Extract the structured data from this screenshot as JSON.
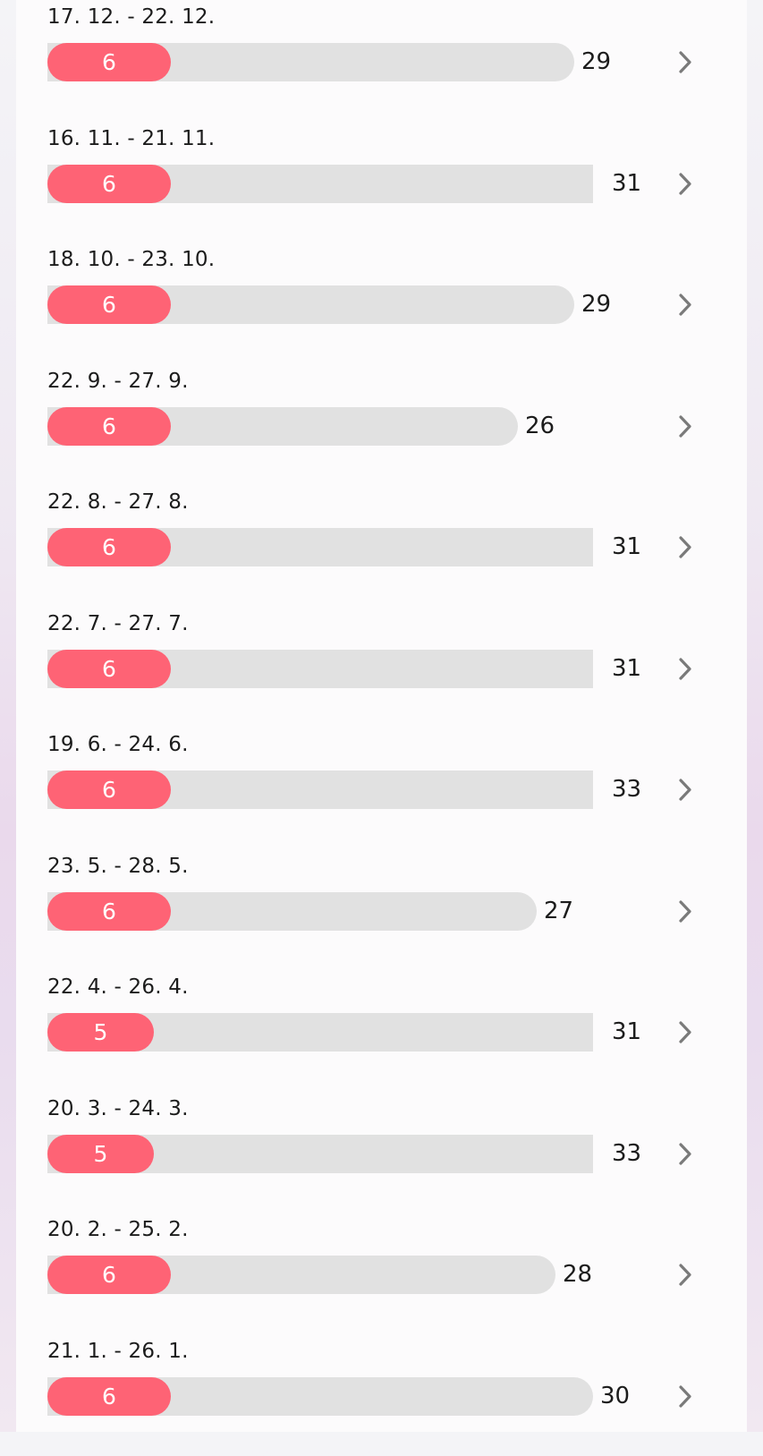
{
  "colors": {
    "period_bar": "#fe6375",
    "cycle_track": "#e1e1e1",
    "chevron": "#7a7a7a"
  },
  "icons": {
    "row_action": "chevron-right-icon"
  },
  "cycles": [
    {
      "date_range": "17. 12. - 22. 12.",
      "period_days": "6",
      "cycle_length": "29"
    },
    {
      "date_range": "16. 11. - 21. 11.",
      "period_days": "6",
      "cycle_length": "31"
    },
    {
      "date_range": "18. 10. - 23. 10.",
      "period_days": "6",
      "cycle_length": "29"
    },
    {
      "date_range": "22. 9. - 27. 9.",
      "period_days": "6",
      "cycle_length": "26"
    },
    {
      "date_range": "22. 8. - 27. 8.",
      "period_days": "6",
      "cycle_length": "31"
    },
    {
      "date_range": "22. 7. - 27. 7.",
      "period_days": "6",
      "cycle_length": "31"
    },
    {
      "date_range": "19. 6. - 24. 6.",
      "period_days": "6",
      "cycle_length": "33"
    },
    {
      "date_range": "23. 5. - 28. 5.",
      "period_days": "6",
      "cycle_length": "27"
    },
    {
      "date_range": "22. 4. - 26. 4.",
      "period_days": "5",
      "cycle_length": "31"
    },
    {
      "date_range": "20. 3. - 24. 3.",
      "period_days": "5",
      "cycle_length": "33"
    },
    {
      "date_range": "20. 2. - 25. 2.",
      "period_days": "6",
      "cycle_length": "28"
    },
    {
      "date_range": "21. 1. - 26. 1.",
      "period_days": "6",
      "cycle_length": "30"
    }
  ]
}
